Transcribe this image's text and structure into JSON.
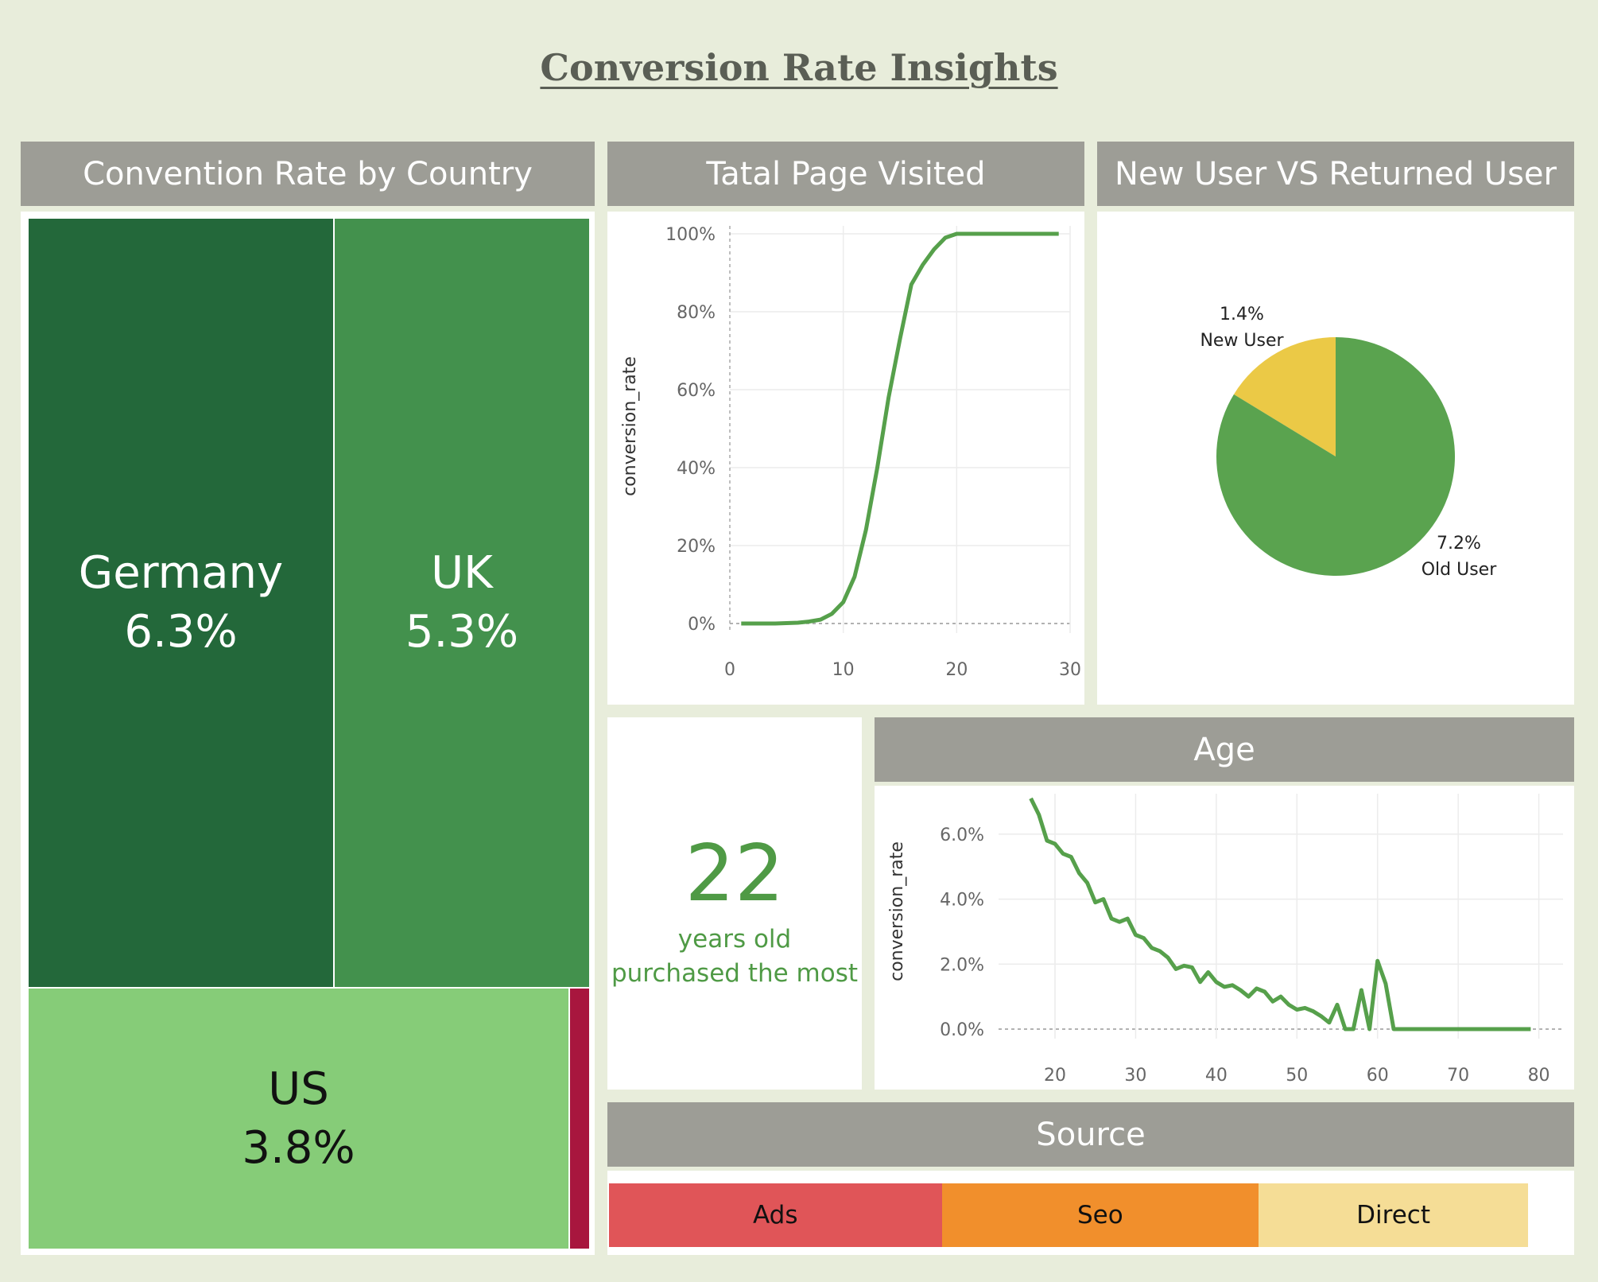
{
  "title": "Conversion Rate Insights",
  "panels": {
    "country": {
      "header": "Convention Rate by Country"
    },
    "pages": {
      "header": "Tatal Page Visited"
    },
    "users": {
      "header": "New User VS Returned User"
    },
    "age": {
      "header": "Age"
    },
    "source": {
      "header": "Source"
    }
  },
  "kpi": {
    "value": "22",
    "caption_line1": "years old",
    "caption_line2": "purchased the most"
  },
  "colors": {
    "germany": "#23683a",
    "uk": "#43914d",
    "us": "#86cc78",
    "china": "#a8163e",
    "line": "#56a04b",
    "new_user": "#ebc946",
    "old_user": "#5aa34f",
    "ads": "#e05558",
    "seo": "#f18f2c",
    "direct": "#f5dd96"
  },
  "chart_data": [
    {
      "type": "treemap",
      "title": "Convention Rate by Country",
      "items": [
        {
          "name": "Germany",
          "label": "6.3%",
          "value": 6.3
        },
        {
          "name": "UK",
          "label": "5.3%",
          "value": 5.3
        },
        {
          "name": "US",
          "label": "3.8%",
          "value": 3.8
        },
        {
          "name": "",
          "label": "",
          "value": 0.1
        }
      ]
    },
    {
      "type": "line",
      "title": "Tatal Page Visited",
      "ylabel": "conversion_rate",
      "xlim": [
        0,
        30
      ],
      "ylim": [
        0,
        100
      ],
      "x_ticks": [
        "0",
        "10",
        "20",
        "30"
      ],
      "y_ticks": [
        "0%",
        "20%",
        "40%",
        "60%",
        "80%",
        "100%"
      ],
      "x": [
        1,
        2,
        3,
        4,
        5,
        6,
        7,
        8,
        9,
        10,
        11,
        12,
        13,
        14,
        15,
        16,
        17,
        18,
        19,
        20,
        21,
        22,
        23,
        24,
        25,
        26,
        27,
        28,
        29
      ],
      "y": [
        0,
        0,
        0,
        0,
        0.1,
        0.2,
        0.5,
        1,
        2.5,
        5.5,
        12,
        24,
        40,
        58,
        73,
        87,
        92,
        96,
        99,
        100,
        100,
        100,
        100,
        100,
        100,
        100,
        100,
        100,
        100
      ]
    },
    {
      "type": "pie",
      "title": "New User VS Returned User",
      "slices": [
        {
          "name": "New User",
          "label": "1.4%",
          "value": 1.4
        },
        {
          "name": "Old User",
          "label": "7.2%",
          "value": 7.2
        }
      ]
    },
    {
      "type": "line",
      "title": "Age",
      "ylabel": "conversion_rate",
      "xlim": [
        13,
        83
      ],
      "ylim": [
        0,
        7
      ],
      "x_ticks": [
        "20",
        "30",
        "40",
        "50",
        "60",
        "70",
        "80"
      ],
      "y_ticks": [
        "0.0%",
        "2.0%",
        "4.0%",
        "6.0%"
      ],
      "x": [
        17,
        18,
        19,
        20,
        21,
        22,
        23,
        24,
        25,
        26,
        27,
        28,
        29,
        30,
        31,
        32,
        33,
        34,
        35,
        36,
        37,
        38,
        39,
        40,
        41,
        42,
        43,
        44,
        45,
        46,
        47,
        48,
        49,
        50,
        51,
        52,
        53,
        54,
        55,
        56,
        57,
        58,
        59,
        60,
        61,
        62,
        63,
        64,
        65,
        66,
        67,
        68,
        69,
        70,
        71,
        72,
        73,
        74,
        75,
        76,
        77,
        78,
        79
      ],
      "y": [
        7.1,
        6.6,
        5.8,
        5.7,
        5.4,
        5.3,
        4.8,
        4.5,
        3.9,
        4.0,
        3.4,
        3.3,
        3.4,
        2.9,
        2.8,
        2.5,
        2.4,
        2.2,
        1.85,
        1.95,
        1.9,
        1.45,
        1.75,
        1.45,
        1.3,
        1.35,
        1.2,
        1.0,
        1.25,
        1.15,
        0.85,
        1.0,
        0.75,
        0.6,
        0.65,
        0.55,
        0.4,
        0.2,
        0.75,
        0,
        0,
        1.2,
        0,
        2.1,
        1.4,
        0,
        0,
        0,
        0,
        0,
        0,
        0,
        0,
        0,
        0,
        0,
        0,
        0,
        0,
        0,
        0,
        0,
        0
      ]
    },
    {
      "type": "bar",
      "title": "Source",
      "categories": [
        "Ads",
        "Seo",
        "Direct"
      ],
      "values": [
        42,
        40,
        34
      ]
    }
  ]
}
